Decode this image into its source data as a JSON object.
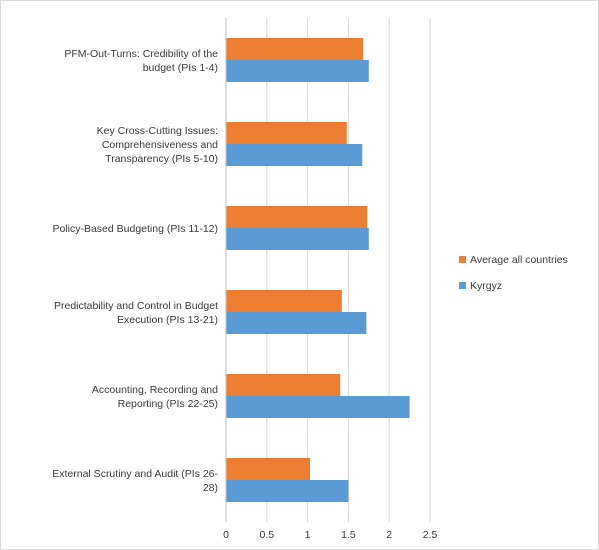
{
  "chart_data": {
    "type": "bar",
    "orientation": "horizontal",
    "categories": [
      [
        "PFM-Out-Turns: Credibility of the",
        "budget (PIs 1-4)"
      ],
      [
        "Key Cross-Cutting Issues:",
        "Comprehensiveness and",
        "Transparency (PIs 5-10)"
      ],
      [
        "Policy-Based Budgeting (PIs 11-12)"
      ],
      [
        "Predictability and Control in Budget",
        "Execution (PIs 13-21)"
      ],
      [
        "Accounting, Recording and",
        "Reporting (PIs 22-25)"
      ],
      [
        "External Scrutiny and Audit (PIs 26-",
        "28)"
      ]
    ],
    "series": [
      {
        "name": "Average all countries",
        "color": "#ED7D31",
        "values": [
          1.68,
          1.48,
          1.73,
          1.42,
          1.4,
          1.03
        ]
      },
      {
        "name": "Kyrgyz",
        "color": "#5B9BD5",
        "values": [
          1.75,
          1.67,
          1.75,
          1.72,
          2.25,
          1.5
        ]
      }
    ],
    "xlim": [
      0,
      2.5
    ],
    "xticks": [
      "0",
      "0.5",
      "1",
      "1.5",
      "2",
      "2.5"
    ],
    "grid": true,
    "legend_position": "right"
  }
}
